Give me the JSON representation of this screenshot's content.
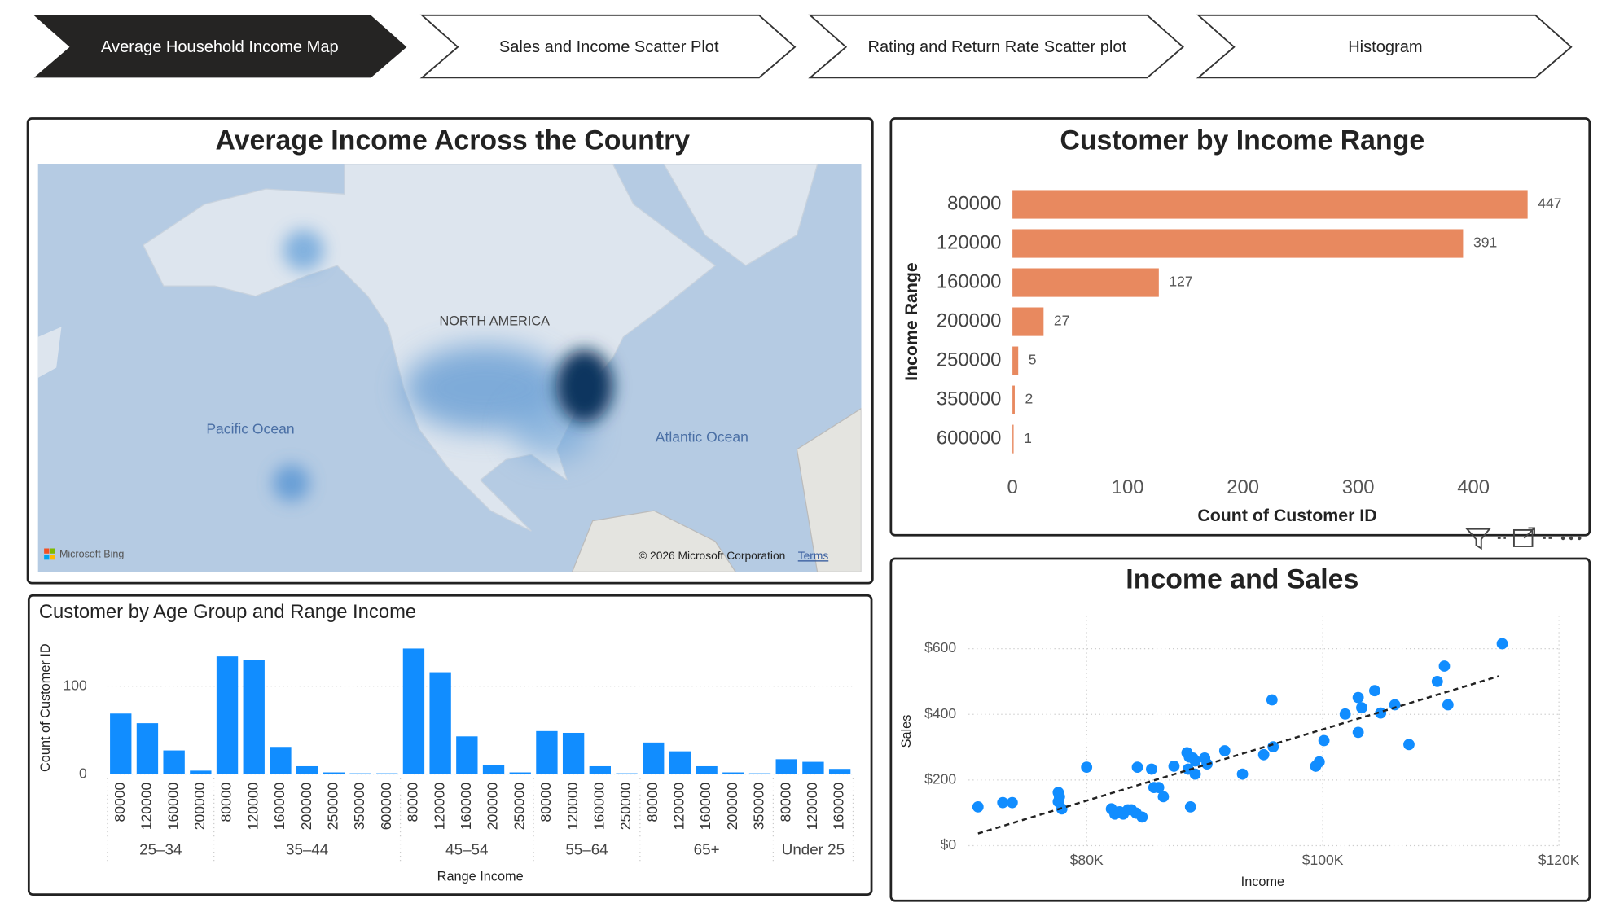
{
  "tabs": [
    "Average Household Income Map",
    "Sales and Income Scatter Plot",
    "Rating and Return Rate Scatter plot",
    "Histogram"
  ],
  "map": {
    "title": "Average Income Across the Country",
    "labels": [
      "NORTH AMERICA",
      "Pacific Ocean",
      "Atlantic Ocean"
    ],
    "attribution": "Microsoft Bing",
    "copyright": "© 2026 Microsoft Corporation",
    "terms": "Terms"
  },
  "chart_data": [
    {
      "type": "bar",
      "orientation": "horizontal",
      "title": "Customer by Income Range",
      "categories": [
        "80000",
        "120000",
        "160000",
        "200000",
        "250000",
        "350000",
        "600000"
      ],
      "values": [
        447,
        391,
        127,
        27,
        5,
        2,
        1
      ],
      "color": "#E8895F",
      "xlim": [
        0,
        460
      ],
      "xticks": [
        0,
        100,
        200,
        300,
        400
      ],
      "x_label": "Count of Customer ID",
      "y_label": "Income Range",
      "data_labels": true
    },
    {
      "type": "grouped_bar",
      "title": "Customer by Age Group and Range Income",
      "groups": [
        {
          "name": "25–34",
          "categories": [
            "80000",
            "120000",
            "160000",
            "200000"
          ],
          "values": [
            69,
            58,
            27,
            4
          ]
        },
        {
          "name": "35–44",
          "categories": [
            "80000",
            "120000",
            "160000",
            "200000",
            "250000",
            "350000",
            "600000"
          ],
          "values": [
            134,
            130,
            31,
            9,
            2,
            1,
            1
          ]
        },
        {
          "name": "45–54",
          "categories": [
            "80000",
            "120000",
            "160000",
            "200000",
            "250000"
          ],
          "values": [
            143,
            116,
            43,
            10,
            2
          ]
        },
        {
          "name": "55–64",
          "categories": [
            "80000",
            "120000",
            "160000",
            "250000"
          ],
          "values": [
            49,
            47,
            9,
            1
          ]
        },
        {
          "name": "65+",
          "categories": [
            "80000",
            "120000",
            "160000",
            "200000",
            "350000"
          ],
          "values": [
            36,
            26,
            9,
            2,
            1
          ]
        },
        {
          "name": "Under 25",
          "categories": [
            "80000",
            "120000",
            "160000"
          ],
          "values": [
            17,
            14,
            6
          ]
        }
      ],
      "color": "#118DFF",
      "ylim": [
        0,
        150
      ],
      "yticks": [
        0,
        100
      ],
      "grid": true,
      "x_label": "Range Income",
      "y_label": "Count of Customer ID"
    },
    {
      "type": "scatter",
      "title": "Income and Sales",
      "x": [
        70800,
        72900,
        73700,
        77600,
        77700,
        77600,
        77900,
        80000,
        82100,
        82400,
        82800,
        83100,
        83500,
        83800,
        84200,
        84700,
        84300,
        85500,
        85700,
        86100,
        86500,
        87400,
        88500,
        88700,
        89000,
        89200,
        88600,
        89200,
        90000,
        90200,
        88800,
        91700,
        93200,
        95000,
        95700,
        95800,
        99400,
        99700,
        100100,
        101900,
        103000,
        103300,
        103000,
        104400,
        104900,
        106100,
        107300,
        109700,
        110300,
        110600,
        115200
      ],
      "values": [
        118,
        131,
        131,
        162,
        149,
        134,
        112,
        239,
        112,
        96,
        103,
        96,
        109,
        109,
        99,
        87,
        239,
        233,
        177,
        177,
        149,
        242,
        283,
        270,
        267,
        258,
        233,
        218,
        267,
        249,
        118,
        289,
        218,
        277,
        444,
        301,
        242,
        255,
        320,
        401,
        451,
        420,
        345,
        472,
        404,
        429,
        308,
        500,
        547,
        429,
        615
      ],
      "trendline": {
        "x": [
          70800,
          114900
        ],
        "values": [
          37,
          516
        ]
      },
      "color": "#118DFF",
      "xlim": [
        70000,
        120000
      ],
      "ylim": [
        0,
        700
      ],
      "xticks": [
        {
          "value": 80000,
          "label": "$80K"
        },
        {
          "value": 100000,
          "label": "$100K"
        },
        {
          "value": 120000,
          "label": "$120K"
        }
      ],
      "yticks": [
        {
          "value": 0,
          "label": "$0"
        },
        {
          "value": 200,
          "label": "$200"
        },
        {
          "value": 400,
          "label": "$400"
        },
        {
          "value": 600,
          "label": "$600"
        }
      ],
      "grid": true,
      "x_label": "Income",
      "y_label": "Sales"
    }
  ]
}
